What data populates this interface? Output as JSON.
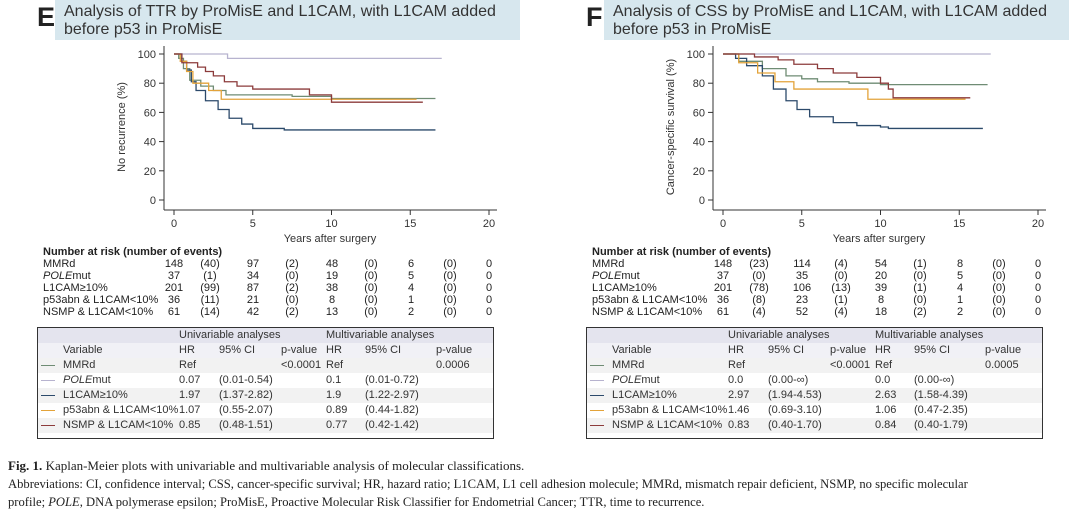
{
  "panels": [
    {
      "letter": "E",
      "risk_table": {
        "header": "Number at risk (number of events)",
        "rows": [
          {
            "label_italic": "",
            "label": "MMRd",
            "values": [
              "148",
              "(40)",
              "97",
              "(2)",
              "48",
              "(0)",
              "6",
              "(0)",
              "0"
            ]
          },
          {
            "label_italic": "POLE",
            "label": "mut",
            "values": [
              "37",
              "(1)",
              "34",
              "(0)",
              "19",
              "(0)",
              "5",
              "(0)",
              "0"
            ]
          },
          {
            "label_italic": "",
            "label": "L1CAM≥10%",
            "values": [
              "201",
              "(99)",
              "87",
              "(2)",
              "38",
              "(0)",
              "4",
              "(0)",
              "0"
            ]
          },
          {
            "label_italic": "",
            "label": "p53abn & L1CAM<10%",
            "values": [
              "36",
              "(11)",
              "21",
              "(0)",
              "8",
              "(0)",
              "1",
              "(0)",
              "0"
            ]
          },
          {
            "label_italic": "",
            "label": "NSMP & L1CAM<10%",
            "values": [
              "61",
              "(14)",
              "42",
              "(2)",
              "13",
              "(0)",
              "2",
              "(0)",
              "0"
            ]
          }
        ]
      },
      "stats_table": {
        "group_headers": [
          "Univariable analyses",
          "Multivariable analyses"
        ],
        "columns": [
          "Variable",
          "HR",
          "95% CI",
          "p-value",
          "HR",
          "95% CI",
          "p-value"
        ],
        "rows": [
          {
            "label_italic": "",
            "label": "MMRd",
            "cells": [
              "Ref",
              "",
              "<0.0001",
              "Ref",
              "",
              "0.0006"
            ]
          },
          {
            "label_italic": "POLE",
            "label": "mut",
            "cells": [
              "0.07",
              "(0.01-0.54)",
              "",
              "0.1",
              "(0.01-0.72)",
              ""
            ]
          },
          {
            "label_italic": "",
            "label": "L1CAM≥10%",
            "cells": [
              "1.97",
              "(1.37-2.82)",
              "",
              "1.9",
              "(1.22-2.97)",
              ""
            ]
          },
          {
            "label_italic": "",
            "label": "p53abn & L1CAM<10%",
            "cells": [
              "1.07",
              "(0.55-2.07)",
              "",
              "0.89",
              "(0.44-1.82)",
              ""
            ]
          },
          {
            "label_italic": "",
            "label": "NSMP & L1CAM<10%",
            "cells": [
              "0.85",
              "(0.48-1.51)",
              "",
              "0.77",
              "(0.42-1.42)",
              ""
            ]
          }
        ]
      }
    },
    {
      "letter": "F",
      "risk_table": {
        "header": "Number at risk (number of events)",
        "rows": [
          {
            "label_italic": "",
            "label": "MMRd",
            "values": [
              "148",
              "(23)",
              "114",
              "(4)",
              "54",
              "(1)",
              "8",
              "(0)",
              "0"
            ]
          },
          {
            "label_italic": "POLE",
            "label": "mut",
            "values": [
              "37",
              "(0)",
              "35",
              "(0)",
              "20",
              "(0)",
              "5",
              "(0)",
              "0"
            ]
          },
          {
            "label_italic": "",
            "label": "L1CAM≥10%",
            "values": [
              "201",
              "(78)",
              "106",
              "(13)",
              "39",
              "(1)",
              "4",
              "(0)",
              "0"
            ]
          },
          {
            "label_italic": "",
            "label": "p53abn & L1CAM<10%",
            "values": [
              "36",
              "(8)",
              "23",
              "(1)",
              "8",
              "(0)",
              "1",
              "(0)",
              "0"
            ]
          },
          {
            "label_italic": "",
            "label": "NSMP & L1CAM<10%",
            "values": [
              "61",
              "(4)",
              "52",
              "(4)",
              "18",
              "(2)",
              "2",
              "(0)",
              "0"
            ]
          }
        ]
      },
      "stats_table": {
        "group_headers": [
          "Univariable analyses",
          "Multivariable analyses"
        ],
        "columns": [
          "Variable",
          "HR",
          "95% CI",
          "p-value",
          "HR",
          "95% CI",
          "p-value"
        ],
        "rows": [
          {
            "label_italic": "",
            "label": "MMRd",
            "cells": [
              "Ref",
              "",
              "<0.0001",
              "Ref",
              "",
              "0.0005"
            ]
          },
          {
            "label_italic": "POLE",
            "label": "mut",
            "cells": [
              "0.0",
              "(0.00-∞)",
              "",
              "0.0",
              "(0.00-∞)",
              ""
            ]
          },
          {
            "label_italic": "",
            "label": "L1CAM≥10%",
            "cells": [
              "2.97",
              "(1.94-4.53)",
              "",
              "2.63",
              "(1.58-4.39)",
              ""
            ]
          },
          {
            "label_italic": "",
            "label": "p53abn & L1CAM<10%",
            "cells": [
              "1.46",
              "(0.69-3.10)",
              "",
              "1.06",
              "(0.47-2.35)",
              ""
            ]
          },
          {
            "label_italic": "",
            "label": "NSMP & L1CAM<10%",
            "cells": [
              "0.83",
              "(0.40-1.70)",
              "",
              "0.84",
              "(0.40-1.79)",
              ""
            ]
          }
        ]
      }
    }
  ],
  "chart_data": [
    {
      "type": "line",
      "title_line1": "Analysis of TTR by ProMisE and L1CAM, with L1CAM added",
      "title_line2": "before p53 in ProMisE",
      "xlabel": "Years after surgery",
      "ylabel": "No recurrence (%)",
      "xlim": [
        0,
        20
      ],
      "ylim": [
        0,
        100
      ],
      "xticks": [
        0,
        5,
        10,
        15,
        20
      ],
      "yticks": [
        0,
        20,
        40,
        60,
        80,
        100
      ],
      "step": true,
      "series": [
        {
          "name": "MMRd",
          "color": "#6f8c74",
          "points": [
            [
              0,
              100
            ],
            [
              0.3,
              97
            ],
            [
              0.6,
              90
            ],
            [
              1,
              82
            ],
            [
              1.7,
              78
            ],
            [
              2.5,
              75
            ],
            [
              3.3,
              72
            ],
            [
              7.5,
              71
            ],
            [
              10,
              69.5
            ],
            [
              16.6,
              69.5
            ]
          ]
        },
        {
          "name": "POLEmut",
          "color": "#b7b3cf",
          "points": [
            [
              0,
              100
            ],
            [
              3.4,
              97
            ],
            [
              17,
              97
            ]
          ]
        },
        {
          "name": "L1CAM≥10%",
          "color": "#2c4a6b",
          "points": [
            [
              0,
              100
            ],
            [
              0.5,
              95
            ],
            [
              0.8,
              89
            ],
            [
              1.1,
              81
            ],
            [
              1.4,
              75
            ],
            [
              2,
              68
            ],
            [
              2.8,
              62
            ],
            [
              3.5,
              56
            ],
            [
              4.3,
              52
            ],
            [
              5,
              49
            ],
            [
              7,
              48
            ],
            [
              16.6,
              48
            ]
          ]
        },
        {
          "name": "p53abn & L1CAM<10%",
          "color": "#e3a33a",
          "points": [
            [
              0,
              100
            ],
            [
              0.4,
              95
            ],
            [
              0.8,
              88
            ],
            [
              1.2,
              80
            ],
            [
              2.2,
              75
            ],
            [
              3,
              69
            ],
            [
              15.4,
              69
            ]
          ]
        },
        {
          "name": "NSMP & L1CAM<10%",
          "color": "#8c3b3b",
          "points": [
            [
              0,
              100
            ],
            [
              0.5,
              94
            ],
            [
              1.5,
              91
            ],
            [
              2,
              88
            ],
            [
              2.5,
              85
            ],
            [
              3.2,
              81
            ],
            [
              4,
              78
            ],
            [
              5,
              76
            ],
            [
              8.6,
              72
            ],
            [
              10,
              67
            ],
            [
              15.8,
              67
            ]
          ]
        }
      ]
    },
    {
      "type": "line",
      "title_line1": "Analysis of CSS by ProMisE and L1CAM, with L1CAM added",
      "title_line2": "before p53 in ProMisE",
      "xlabel": "Years after surgery",
      "ylabel": "Cancer-specific survival (%)",
      "xlim": [
        0,
        20
      ],
      "ylim": [
        0,
        100
      ],
      "xticks": [
        0,
        5,
        10,
        15,
        20
      ],
      "yticks": [
        0,
        20,
        40,
        60,
        80,
        100
      ],
      "step": true,
      "series": [
        {
          "name": "MMRd",
          "color": "#6f8c74",
          "points": [
            [
              0,
              100
            ],
            [
              1,
              95
            ],
            [
              2.5,
              90
            ],
            [
              4,
              85
            ],
            [
              5,
              83
            ],
            [
              6,
              81
            ],
            [
              8,
              80
            ],
            [
              10,
              79
            ],
            [
              16.8,
              79
            ]
          ]
        },
        {
          "name": "POLEmut",
          "color": "#b7b3cf",
          "points": [
            [
              0,
              100
            ],
            [
              17,
              100
            ]
          ]
        },
        {
          "name": "L1CAM≥10%",
          "color": "#2c4a6b",
          "points": [
            [
              0,
              100
            ],
            [
              0.8,
              97
            ],
            [
              1.5,
              92
            ],
            [
              2.5,
              85
            ],
            [
              3.2,
              76
            ],
            [
              4,
              68
            ],
            [
              4.7,
              62
            ],
            [
              5.5,
              57
            ],
            [
              7,
              53
            ],
            [
              8.5,
              51
            ],
            [
              10,
              50
            ],
            [
              10.5,
              49
            ],
            [
              16.5,
              49
            ]
          ]
        },
        {
          "name": "p53abn & L1CAM<10%",
          "color": "#e3a33a",
          "points": [
            [
              0,
              100
            ],
            [
              1,
              94
            ],
            [
              2.2,
              87
            ],
            [
              3.3,
              81
            ],
            [
              4.5,
              76
            ],
            [
              9.2,
              69
            ],
            [
              15.4,
              69
            ]
          ]
        },
        {
          "name": "NSMP & L1CAM<10%",
          "color": "#8c3b3b",
          "points": [
            [
              0,
              100
            ],
            [
              2,
              98
            ],
            [
              3.5,
              96
            ],
            [
              4.5,
              93
            ],
            [
              6,
              90
            ],
            [
              7,
              87
            ],
            [
              8.5,
              84
            ],
            [
              10,
              80
            ],
            [
              10.5,
              76
            ],
            [
              10.8,
              70
            ],
            [
              15.7,
              70
            ]
          ]
        }
      ]
    }
  ],
  "caption": {
    "fig_label": "Fig. 1.",
    "fig_text": " Kaplan-Meier plots with univariable and multivariable analysis of molecular classifications.",
    "abbrev_line1": "Abbreviations: CI, confidence interval; CSS, cancer-specific survival; HR, hazard ratio; L1CAM, L1 cell adhesion molecule; MMRd, mismatch repair deficient, NSMP, no specific molecular",
    "abbrev_line2_pre": "profile; ",
    "abbrev_line2_italic": "POLE",
    "abbrev_line2_post": ", DNA polymerase epsilon; ProMisE, Proactive Molecular Risk Classifier for Endometrial Cancer; TTR, time to recurrence."
  }
}
